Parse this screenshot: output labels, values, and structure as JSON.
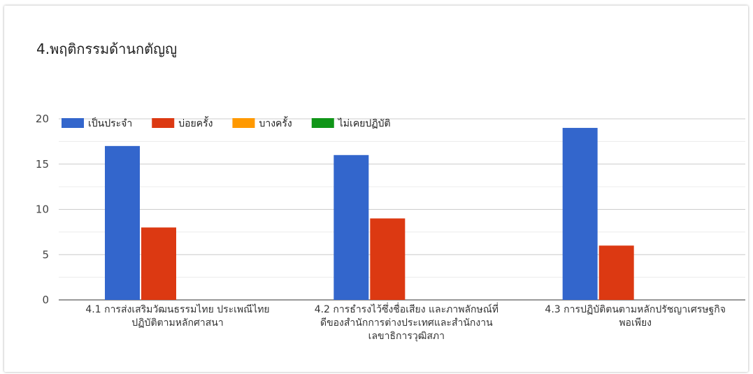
{
  "title": "4.พฤติกรรมด้านกตัญญู",
  "chart_data": {
    "type": "bar",
    "title": "4.พฤติกรรมด้านกตัญญู",
    "categories": [
      [
        "4.1 การส่งเสริมวัฒนธรรมไทย ประเพณีไทย",
        "ปฏิบัติตามหลักศาสนา"
      ],
      [
        "4.2 การธำรงไว้ซึ่งชื่อเสียง และภาพลักษณ์ที่",
        "ดีของสำนักการต่างประเทศและสำนักงาน",
        "เลขาธิการวุฒิสภา"
      ],
      [
        "4.3 การปฏิบัติตนตามหลักปรัชญาเศรษฐกิจ",
        "พอเพียง"
      ]
    ],
    "series": [
      {
        "name": "เป็นประจำ",
        "color": "#3366cc",
        "values": [
          17,
          16,
          19
        ]
      },
      {
        "name": "บ่อยครั้ง",
        "color": "#dc3912",
        "values": [
          8,
          9,
          6
        ]
      },
      {
        "name": "บางครั้ง",
        "color": "#ff9900",
        "values": [
          0,
          0,
          0
        ]
      },
      {
        "name": "ไม่เคยปฏิบัติ",
        "color": "#109618",
        "values": [
          0,
          0,
          0
        ]
      }
    ],
    "ylim": [
      0,
      20
    ],
    "yticks": [
      0,
      5,
      10,
      15,
      20
    ],
    "grid": true,
    "legend": "top-left"
  }
}
